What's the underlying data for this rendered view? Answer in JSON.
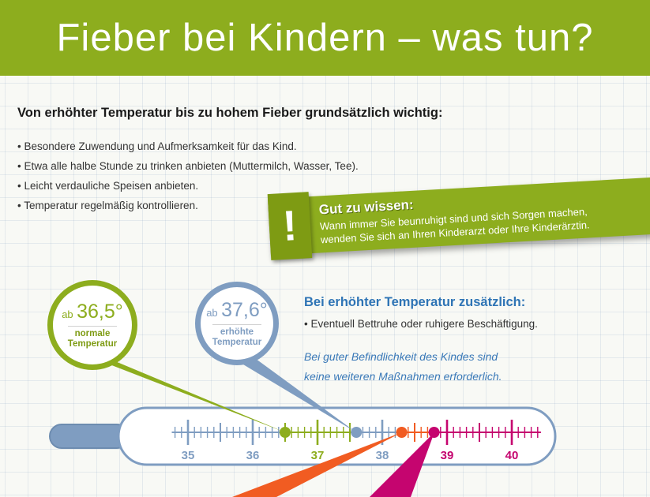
{
  "header": {
    "title": "Fieber bei Kindern – was tun?"
  },
  "intro": {
    "heading": "Von erhöhter Temperatur bis zu hohem Fieber grundsätzlich wichtig:",
    "bullets": [
      "Besondere Zuwendung und Aufmerksamkeit für das Kind.",
      "Etwa alle halbe Stunde zu trinken anbieten (Muttermilch, Wasser, Tee).",
      "Leicht verdauliche Speisen anbieten.",
      "Temperatur regelmäßig kontrollieren."
    ]
  },
  "tip_banner": {
    "icon": "!",
    "title": "Gut zu wissen:",
    "line1": "Wann immer Sie beunruhigt sind und sich Sorgen machen,",
    "line2": "wenden Sie sich an Ihren Kinderarzt oder Ihre Kinderärztin."
  },
  "bubbles": {
    "normal": {
      "prefix": "ab",
      "value": "36,5°",
      "label_line1": "normale",
      "label_line2": "Temperatur"
    },
    "elevated": {
      "prefix": "ab",
      "value": "37,6°",
      "label_line1": "erhöhte",
      "label_line2": "Temperatur"
    }
  },
  "elevated_section": {
    "heading": "Bei erhöhter Temperatur zusätzlich:",
    "bullet": "Eventuell Bettruhe oder ruhigere Beschäftigung.",
    "note_line1": "Bei guter Befindlichkeit des Kindes sind",
    "note_line2": "keine weiteren Maßnahmen erforderlich."
  },
  "thermometer": {
    "labels": [
      {
        "text": "35",
        "color": "#7f9dc1"
      },
      {
        "text": "36",
        "color": "#7f9dc1"
      },
      {
        "text": "37",
        "color": "#8dad1e"
      },
      {
        "text": "38",
        "color": "#7f9dc1"
      },
      {
        "text": "39",
        "color": "#c5056f"
      },
      {
        "text": "40",
        "color": "#c5056f"
      }
    ],
    "segments": [
      {
        "from": 34.75,
        "to": 36.45,
        "color": "#7f9dc1"
      },
      {
        "from": 36.45,
        "to": 37.55,
        "color": "#8dad1e"
      },
      {
        "from": 37.55,
        "to": 38.25,
        "color": "#7f9dc1"
      },
      {
        "from": 38.25,
        "to": 38.75,
        "color": "#f15c22"
      },
      {
        "from": 38.75,
        "to": 40.45,
        "color": "#c5056f"
      }
    ],
    "markers": [
      {
        "temp": 36.5,
        "color": "#8dad1e"
      },
      {
        "temp": 37.6,
        "color": "#7f9dc1"
      },
      {
        "temp": 38.3,
        "color": "#f15c22"
      },
      {
        "temp": 38.8,
        "color": "#c5056f"
      }
    ]
  },
  "colors": {
    "green": "#8dad1e",
    "green_dark": "#7e9b13",
    "blue_gray": "#7f9dc1",
    "text_blue": "#2e74b5",
    "orange": "#f15c22",
    "magenta": "#c5056f"
  }
}
